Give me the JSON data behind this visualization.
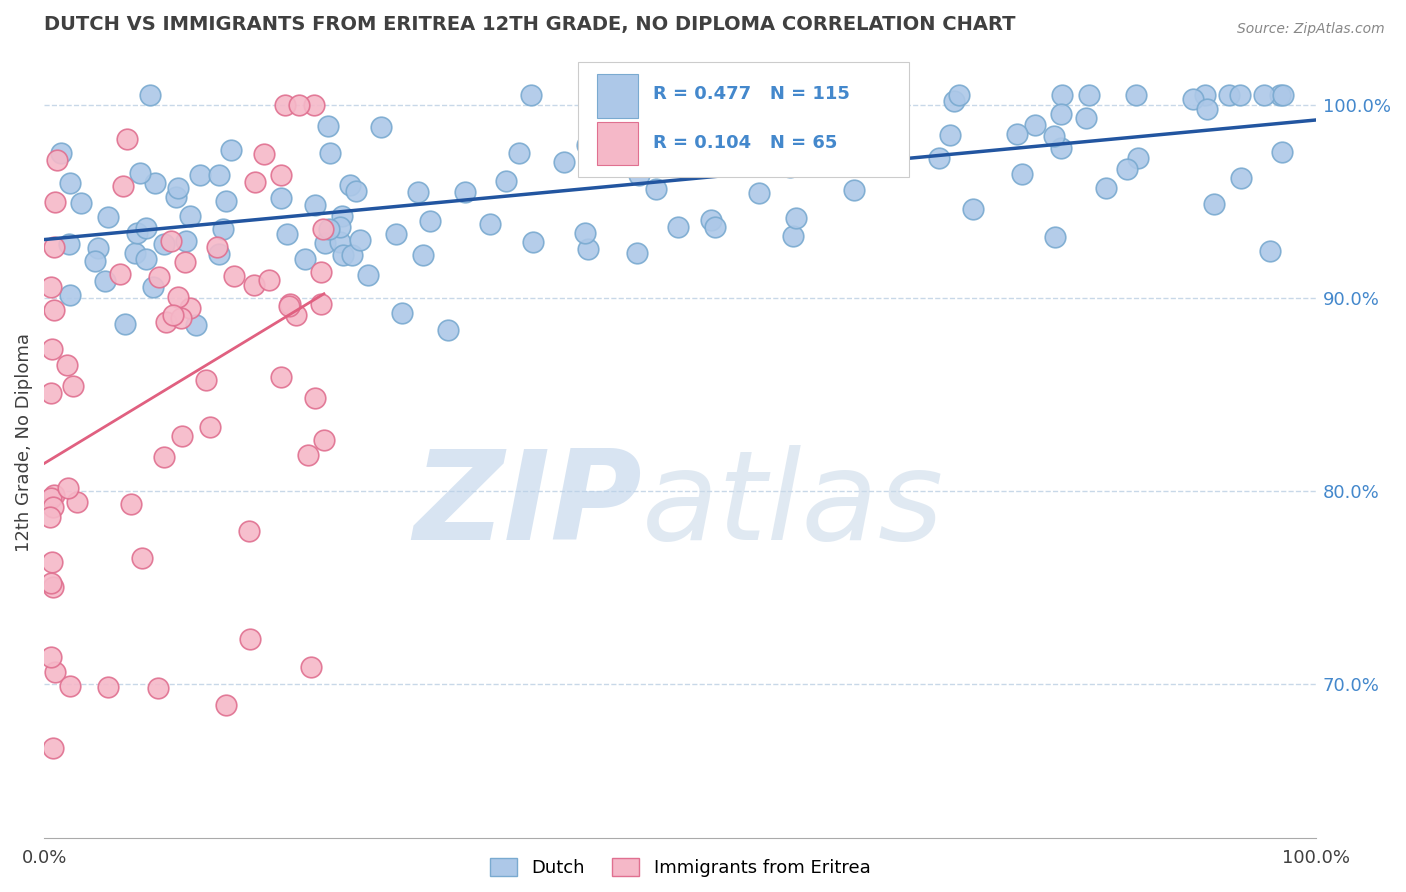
{
  "title": "DUTCH VS IMMIGRANTS FROM ERITREA 12TH GRADE, NO DIPLOMA CORRELATION CHART",
  "source": "Source: ZipAtlas.com",
  "ylabel": "12th Grade, No Diploma",
  "dutch_R": 0.477,
  "dutch_N": 115,
  "eritrea_R": 0.104,
  "eritrea_N": 65,
  "dutch_color": "#adc8e8",
  "dutch_edge_color": "#7aaad0",
  "eritrea_color": "#f5b8c8",
  "eritrea_edge_color": "#e07090",
  "trend_dutch_color": "#2255a0",
  "trend_eritrea_color": "#e06080",
  "watermark_zip_color": "#b8cfe8",
  "watermark_atlas_color": "#c8d8e8",
  "background_color": "#ffffff",
  "grid_color": "#c8d8e8",
  "title_color": "#404040",
  "right_axis_color": "#4488cc",
  "source_color": "#888888",
  "ylim_min": 0.62,
  "ylim_max": 1.03,
  "xlim_min": 0.0,
  "xlim_max": 1.0,
  "y_ticks": [
    1.0,
    0.9,
    0.8,
    0.7
  ],
  "y_tick_labels": [
    "100.0%",
    "90.0%",
    "80.0%",
    "70.0%"
  ]
}
